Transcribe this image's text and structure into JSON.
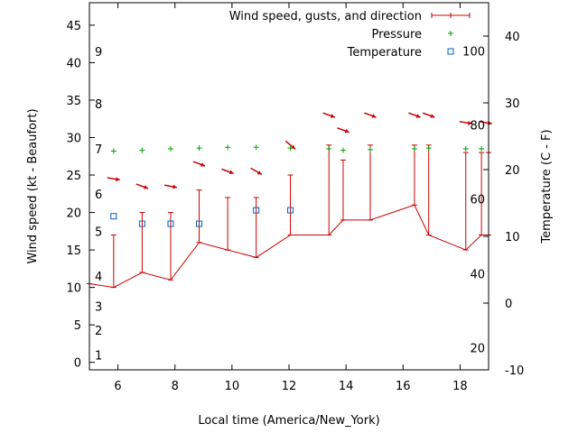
{
  "chart_data": {
    "type": "line",
    "title": "",
    "xlabel": "Local time (America/New_York)",
    "ylabel": "Wind speed (kt - Beaufort)",
    "y2label": "Temperature (C - F)",
    "xlim": [
      5,
      19
    ],
    "ylim": [
      -1,
      48
    ],
    "y2lim": [
      -10,
      45
    ],
    "x_ticks": [
      6,
      8,
      10,
      12,
      14,
      16,
      18
    ],
    "y_ticks": [
      0,
      5,
      10,
      15,
      20,
      25,
      30,
      35,
      40,
      45
    ],
    "y2_ticks": [
      -10,
      0,
      10,
      20,
      30,
      40
    ],
    "beaufort_labels": [
      {
        "label": "1",
        "y": 1
      },
      {
        "label": "2",
        "y": 4.3
      },
      {
        "label": "3",
        "y": 7.5
      },
      {
        "label": "4",
        "y": 11.5
      },
      {
        "label": "5",
        "y": 17.5
      },
      {
        "label": "6",
        "y": 22.5
      },
      {
        "label": "7",
        "y": 28.5
      },
      {
        "label": "8",
        "y": 34.5
      },
      {
        "label": "9",
        "y": 41.5
      }
    ],
    "fahrenheit_labels": [
      {
        "label": "20",
        "y2": -6.7
      },
      {
        "label": "40",
        "y2": 4.4
      },
      {
        "label": "60",
        "y2": 15.6
      },
      {
        "label": "80",
        "y2": 26.7
      },
      {
        "label": "100",
        "y2": 37.8
      }
    ],
    "legend": {
      "position": "top-right",
      "entries": [
        "Wind speed, gusts, and direction",
        "Pressure",
        "Temperature"
      ]
    },
    "colors": {
      "wind": "#cc0000",
      "pressure": "#00a000",
      "temperature": "#0060c0"
    },
    "series": [
      {
        "name": "Wind speed, gusts, and direction",
        "x": [
          5.0,
          5.85,
          6.85,
          7.85,
          8.85,
          9.85,
          10.85,
          12.05,
          13.4,
          13.9,
          14.85,
          16.4,
          16.9,
          18.2,
          18.75,
          19.0
        ],
        "y": [
          10.5,
          10,
          12,
          11,
          16,
          15,
          14,
          17,
          17,
          19,
          19,
          21,
          17,
          15,
          17,
          17
        ],
        "gusts": [
          null,
          17,
          20,
          20,
          23,
          22,
          22,
          25,
          29,
          27,
          29,
          29,
          29,
          28,
          28,
          28
        ]
      },
      {
        "name": "Pressure",
        "x": [
          5.85,
          6.85,
          7.85,
          8.85,
          9.85,
          10.85,
          12.05,
          13.4,
          13.9,
          14.85,
          16.4,
          16.9,
          18.2,
          18.75
        ],
        "y": [
          28.2,
          28.3,
          28.5,
          28.6,
          28.7,
          28.7,
          28.6,
          28.5,
          28.3,
          28.4,
          28.5,
          28.6,
          28.5,
          28.5
        ]
      },
      {
        "name": "Temperature",
        "x": [
          5.85,
          6.85,
          7.85,
          8.85,
          10.85,
          12.05
        ],
        "y": [
          19.5,
          18.5,
          18.5,
          18.5,
          20.3,
          20.3
        ]
      }
    ],
    "wind_direction": [
      {
        "x": 5.85,
        "y": 24.5,
        "dir_deg": 80
      },
      {
        "x": 6.85,
        "y": 23.5,
        "dir_deg": 70
      },
      {
        "x": 7.85,
        "y": 23.5,
        "dir_deg": 80
      },
      {
        "x": 8.85,
        "y": 26.5,
        "dir_deg": 70
      },
      {
        "x": 9.85,
        "y": 25.5,
        "dir_deg": 70
      },
      {
        "x": 10.85,
        "y": 25.5,
        "dir_deg": 60
      },
      {
        "x": 12.05,
        "y": 29.0,
        "dir_deg": 50
      },
      {
        "x": 13.4,
        "y": 33.0,
        "dir_deg": 70
      },
      {
        "x": 13.9,
        "y": 31.0,
        "dir_deg": 70
      },
      {
        "x": 14.85,
        "y": 33.0,
        "dir_deg": 70
      },
      {
        "x": 16.4,
        "y": 33.0,
        "dir_deg": 70
      },
      {
        "x": 16.9,
        "y": 33.0,
        "dir_deg": 70
      },
      {
        "x": 18.2,
        "y": 32.0,
        "dir_deg": 80
      },
      {
        "x": 18.9,
        "y": 32.0,
        "dir_deg": 80
      }
    ]
  }
}
